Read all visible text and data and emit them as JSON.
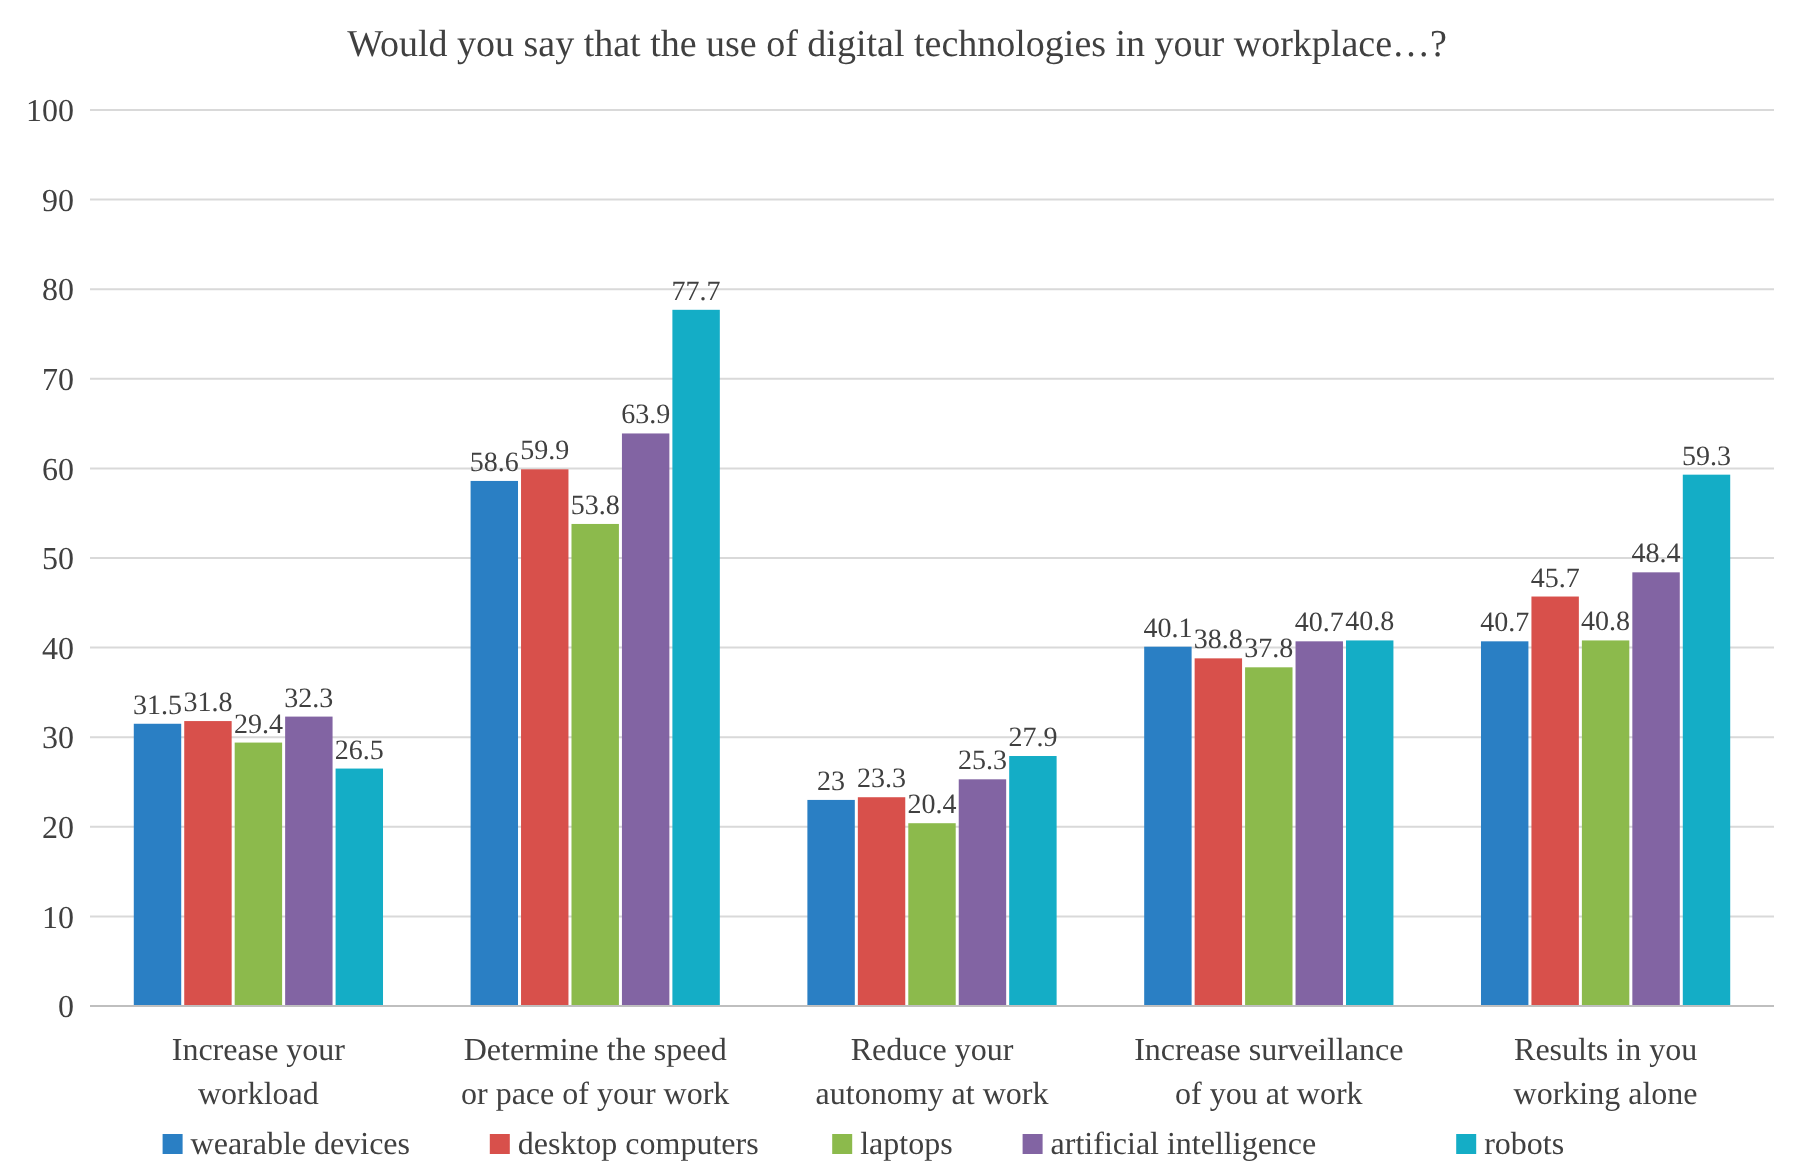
{
  "chart_data": {
    "type": "bar",
    "title": "Would you say that the use of digital technologies in your workplace…?",
    "categories": [
      "Increase your workload",
      "Determine the speed or pace of your work",
      "Reduce your autonomy at work",
      "Increase surveillance of you at work",
      "Results in you working alone"
    ],
    "series": [
      {
        "name": "wearable devices",
        "color": "#2a7fc4",
        "values": [
          31.5,
          58.6,
          23,
          40.1,
          40.7
        ]
      },
      {
        "name": "desktop computers",
        "color": "#d8504b",
        "values": [
          31.8,
          59.9,
          23.3,
          38.8,
          45.7
        ]
      },
      {
        "name": "laptops",
        "color": "#8cba4c",
        "values": [
          29.4,
          53.8,
          20.4,
          37.8,
          40.8
        ]
      },
      {
        "name": "artificial intelligence",
        "color": "#8264a3",
        "values": [
          32.3,
          63.9,
          25.3,
          40.7,
          48.4
        ]
      },
      {
        "name": "robots",
        "color": "#14adc6",
        "values": [
          26.5,
          77.7,
          27.9,
          40.8,
          59.3
        ]
      }
    ],
    "ylim": [
      0,
      100
    ],
    "yticks": [
      0,
      10,
      20,
      30,
      40,
      50,
      60,
      70,
      80,
      90,
      100
    ],
    "grid": "y",
    "legend": "bottom",
    "data_labels": true
  }
}
